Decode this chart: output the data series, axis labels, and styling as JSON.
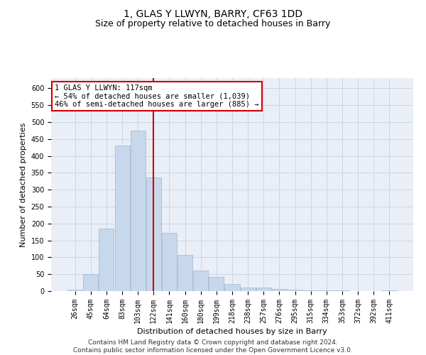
{
  "title": "1, GLAS Y LLWYN, BARRY, CF63 1DD",
  "subtitle": "Size of property relative to detached houses in Barry",
  "xlabel": "Distribution of detached houses by size in Barry",
  "ylabel": "Number of detached properties",
  "bar_color": "#c8d8ec",
  "bar_edge_color": "#a8bdd4",
  "grid_color": "#cdd5e3",
  "background_color": "#eaeff7",
  "vline_color": "#cc0000",
  "annotation_text": "1 GLAS Y LLWYN: 117sqm\n← 54% of detached houses are smaller (1,039)\n46% of semi-detached houses are larger (885) →",
  "annotation_box_color": "#ffffff",
  "annotation_box_edge": "#cc0000",
  "categories": [
    "26sqm",
    "45sqm",
    "64sqm",
    "83sqm",
    "103sqm",
    "122sqm",
    "141sqm",
    "160sqm",
    "180sqm",
    "199sqm",
    "218sqm",
    "238sqm",
    "257sqm",
    "276sqm",
    "295sqm",
    "315sqm",
    "334sqm",
    "353sqm",
    "372sqm",
    "392sqm",
    "411sqm"
  ],
  "values": [
    5,
    50,
    185,
    430,
    475,
    335,
    172,
    107,
    60,
    43,
    22,
    10,
    10,
    7,
    5,
    3,
    2,
    2,
    1,
    1,
    2
  ],
  "ylim": [
    0,
    630
  ],
  "yticks": [
    0,
    50,
    100,
    150,
    200,
    250,
    300,
    350,
    400,
    450,
    500,
    550,
    600
  ],
  "footer": "Contains HM Land Registry data © Crown copyright and database right 2024.\nContains public sector information licensed under the Open Government Licence v3.0.",
  "title_fontsize": 10,
  "subtitle_fontsize": 9,
  "axis_label_fontsize": 8,
  "tick_fontsize": 7,
  "footer_fontsize": 6.5,
  "annot_fontsize": 7.5
}
